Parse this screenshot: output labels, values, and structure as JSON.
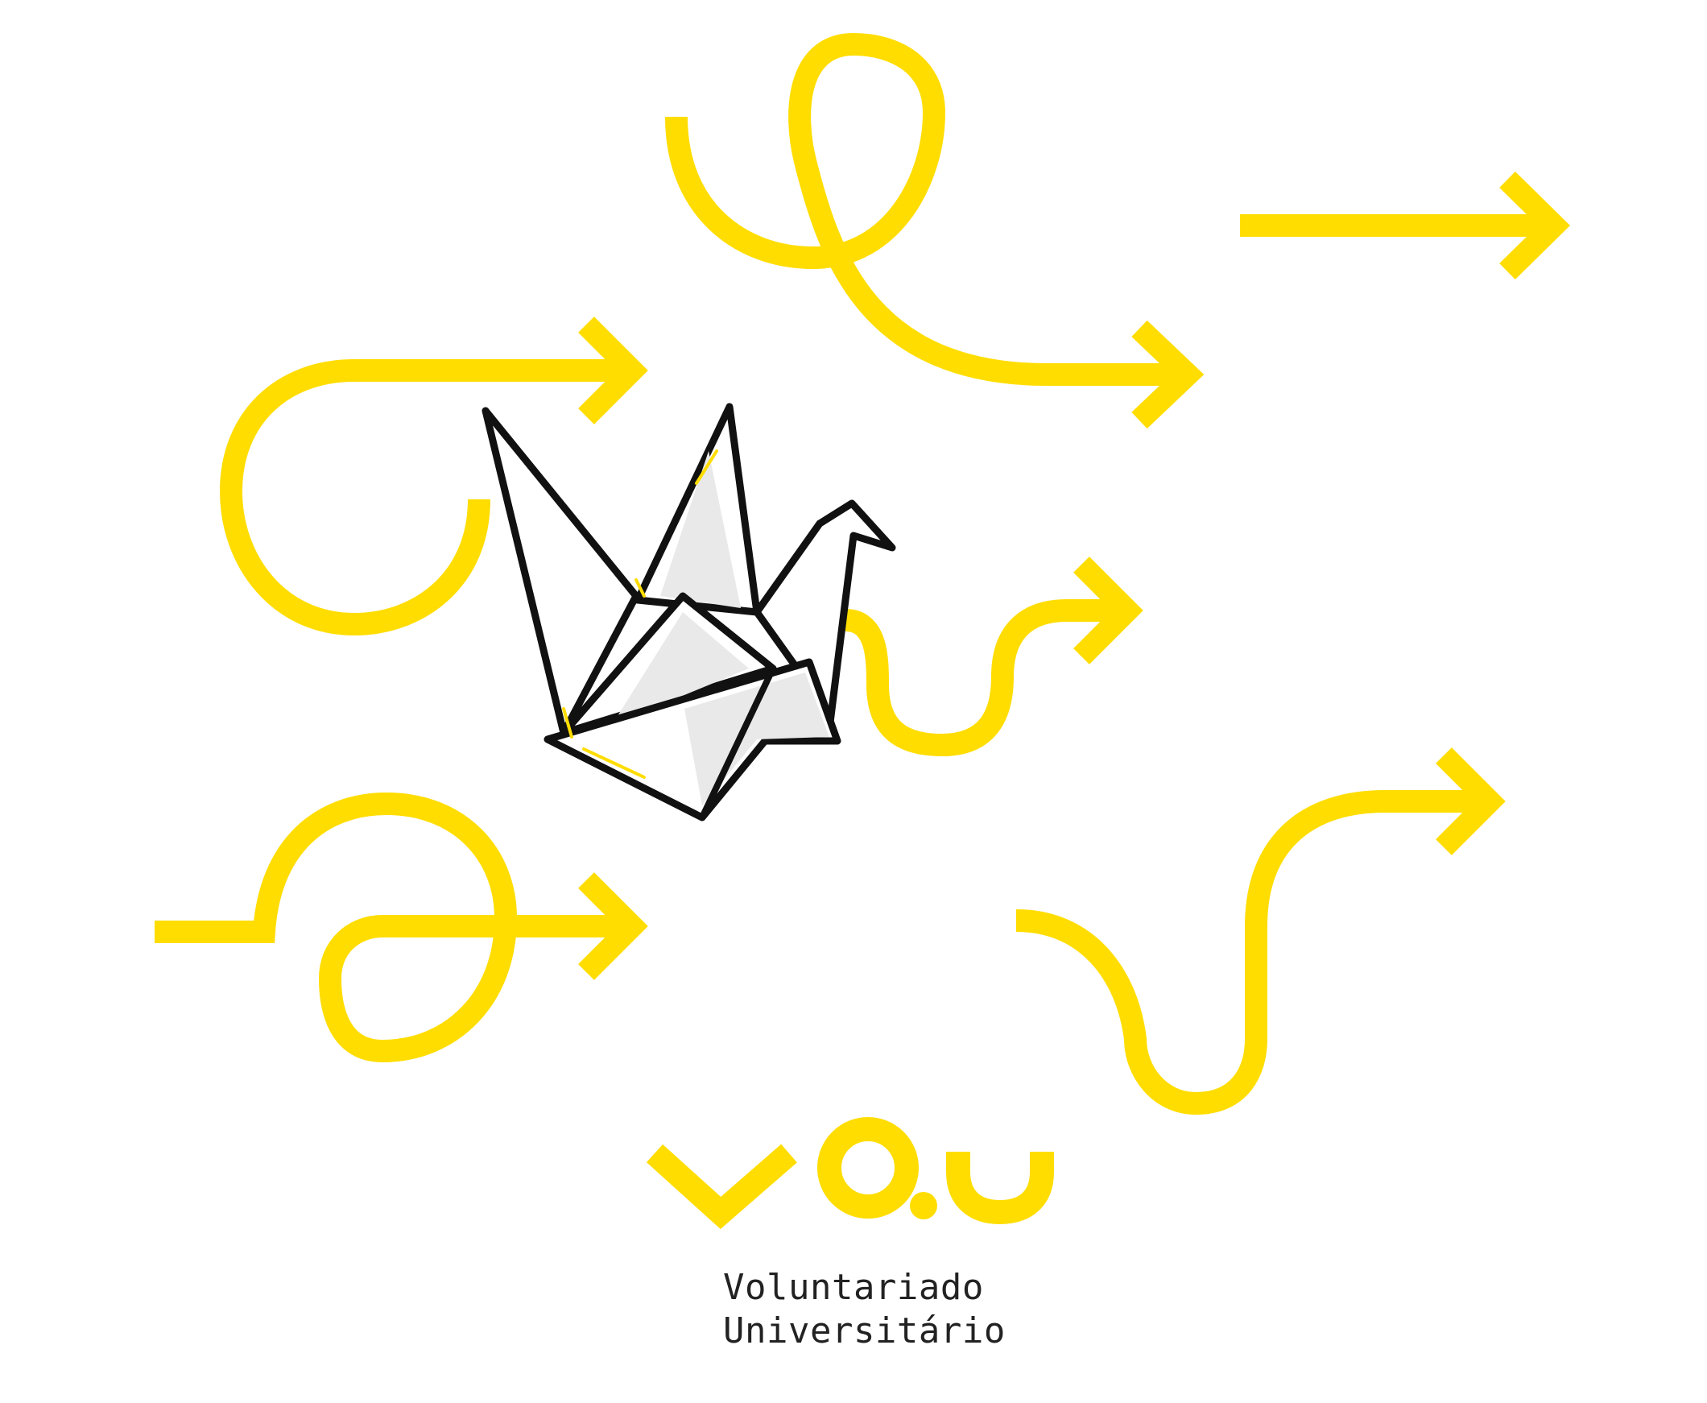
{
  "brand": {
    "logo_mark_text": "VO.U",
    "subtitle_line_1": "Voluntariado",
    "subtitle_line_2": "Universitário"
  },
  "colors": {
    "accent_yellow": "#ffdd00",
    "background": "#ffffff",
    "outline": "#111111",
    "text": "#222222"
  },
  "illustration": {
    "centerpiece": "origami-crane-icon",
    "decorations": [
      "curvy-arrow-icon",
      "loop-arrow-icon",
      "straight-arrow-icon",
      "wave-arrow-icon",
      "s-curve-arrow-icon"
    ]
  }
}
